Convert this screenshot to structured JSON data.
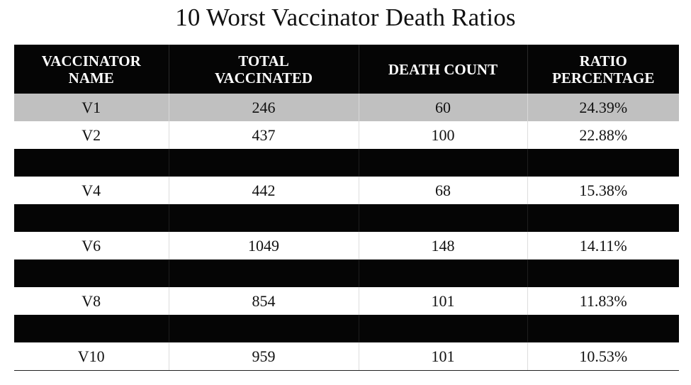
{
  "title": "10 Worst Vaccinator Death Ratios",
  "colors": {
    "header_bg": "#050505",
    "header_text": "#ffffff",
    "highlight_row": "#c0c0c0",
    "redacted_row": "#050505"
  },
  "table": {
    "headers": [
      "VACCINATOR\nNAME",
      "TOTAL\nVACCINATED",
      "DEATH COUNT",
      "RATIO\nPERCENTAGE"
    ],
    "rows": [
      {
        "name": "V1",
        "total": "246",
        "deaths": "60",
        "ratio": "24.39%",
        "style": "highlight"
      },
      {
        "name": "V2",
        "total": "437",
        "deaths": "100",
        "ratio": "22.88%",
        "style": "plain"
      },
      {
        "name": "",
        "total": "",
        "deaths": "",
        "ratio": "",
        "style": "redacted"
      },
      {
        "name": "V4",
        "total": "442",
        "deaths": "68",
        "ratio": "15.38%",
        "style": "plain"
      },
      {
        "name": "",
        "total": "",
        "deaths": "",
        "ratio": "",
        "style": "redacted"
      },
      {
        "name": "V6",
        "total": "1049",
        "deaths": "148",
        "ratio": "14.11%",
        "style": "plain"
      },
      {
        "name": "",
        "total": "",
        "deaths": "",
        "ratio": "",
        "style": "redacted"
      },
      {
        "name": "V8",
        "total": "854",
        "deaths": "101",
        "ratio": "11.83%",
        "style": "plain"
      },
      {
        "name": "",
        "total": "",
        "deaths": "",
        "ratio": "",
        "style": "redacted"
      },
      {
        "name": "V10",
        "total": "959",
        "deaths": "101",
        "ratio": "10.53%",
        "style": "plain"
      }
    ]
  }
}
